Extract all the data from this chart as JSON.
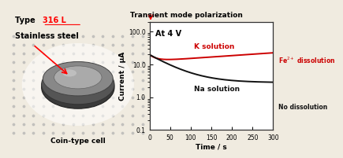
{
  "title_text": "Transient mode polarization",
  "annotation_at4v": "At 4 V",
  "ylabel": "Current / μA",
  "xlabel": "Time / s",
  "xlim": [
    0,
    300
  ],
  "yticks": [
    0.1,
    1.0,
    10.0,
    100.0
  ],
  "xticks": [
    0,
    50,
    100,
    150,
    200,
    250,
    300
  ],
  "k_label": "K solution",
  "na_label": "Na solution",
  "k_annot": "Fe$^{2+}$ dissolution",
  "na_annot": "No dissolution",
  "k_color": "#cc0000",
  "na_color": "#111111",
  "left_title1": "Type ",
  "left_title1b": "316 L",
  "left_title2": "Stainless steel",
  "left_caption": "Coin-type cell",
  "bg_color": "#f0ebe0",
  "arrow_color": "#cc0000"
}
